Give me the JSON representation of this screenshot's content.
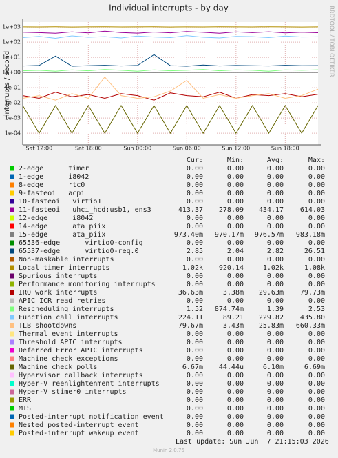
{
  "chart_data": {
    "type": "line",
    "title": "Individual interrupts - by day",
    "y_label": "interrupts / second",
    "side_label": "RRDTOOL / TOBI OETIKER",
    "log_scale": true,
    "grid": true,
    "categories": [
      null,
      "Sat 12:00",
      null,
      null,
      "Sat 18:00",
      null,
      null,
      "Sun 00:00",
      null,
      null,
      "Sun 06:00",
      null,
      null,
      "Sun 12:00",
      null,
      null,
      "Sun 18:00",
      null,
      null
    ],
    "ylim": [
      1.7e-05,
      2100
    ],
    "yticks": [
      {
        "value": 1000,
        "label": "1e+03"
      },
      {
        "value": 100,
        "label": "1e+02"
      },
      {
        "value": 10,
        "label": "1e+01"
      },
      {
        "value": 1,
        "label": "1e+00"
      },
      {
        "value": 0.1,
        "label": "1e-01"
      },
      {
        "value": 0.01,
        "label": "1e-02"
      },
      {
        "value": 0.001,
        "label": "1e-03"
      },
      {
        "value": 0.0001,
        "label": "1e-04"
      }
    ],
    "stat_headers": [
      "Cur:",
      "Min:",
      "Avg:",
      "Max:"
    ],
    "series": [
      {
        "name": "2-edge      timer",
        "color": "#00cc00",
        "stats": [
          "0.00",
          "0.00",
          "0.00",
          "0.00"
        ]
      },
      {
        "name": "1-edge      i8042",
        "color": "#0066b3",
        "stats": [
          "0.00",
          "0.00",
          "0.00",
          "0.00"
        ]
      },
      {
        "name": "8-edge      rtc0",
        "color": "#ff8000",
        "stats": [
          "0.00",
          "0.00",
          "0.00",
          "0.00"
        ]
      },
      {
        "name": "9-fasteoi   acpi",
        "color": "#ffcc00",
        "stats": [
          "0.00",
          "0.00",
          "0.00",
          "0.00"
        ]
      },
      {
        "name": "10-fasteoi   virtio1",
        "color": "#330099",
        "stats": [
          "0.00",
          "0.00",
          "0.00",
          "0.00"
        ]
      },
      {
        "name": "11-fasteoi   uhci_hcd:usb1, ens3",
        "color": "#990099",
        "stats": [
          "413.37",
          "278.09",
          "434.17",
          "614.03"
        ],
        "values": [
          450,
          420,
          380,
          470,
          400,
          520,
          430,
          390,
          460,
          410,
          500,
          440,
          380,
          470,
          420,
          480,
          400,
          450,
          413
        ]
      },
      {
        "name": "12-edge      i8042",
        "color": "#ccff00",
        "stats": [
          "0.00",
          "0.00",
          "0.00",
          "0.00"
        ]
      },
      {
        "name": "14-edge      ata_piix",
        "color": "#ff0000",
        "stats": [
          "0.00",
          "0.00",
          "0.00",
          "0.00"
        ]
      },
      {
        "name": "15-edge      ata_piix",
        "color": "#808080",
        "stats": [
          "973.40m",
          "970.17m",
          "976.57m",
          "983.18m"
        ],
        "values": [
          0.975,
          0.978,
          0.972,
          0.976,
          0.98,
          0.974,
          0.977,
          0.975,
          0.971,
          0.979,
          0.976,
          0.974,
          0.978,
          0.975,
          0.977,
          0.973,
          0.976,
          0.978,
          0.973
        ]
      },
      {
        "name": "65536-edge      virtio0-config",
        "color": "#008f00",
        "stats": [
          "0.00",
          "0.00",
          "0.00",
          "0.00"
        ]
      },
      {
        "name": "65537-edge      virtio0-req.0",
        "color": "#00487d",
        "stats": [
          "2.85",
          "2.04",
          "2.82",
          "26.51"
        ],
        "values": [
          2.7,
          2.9,
          12,
          2.6,
          2.8,
          3,
          2.7,
          2.9,
          15,
          2.8,
          2.6,
          3.1,
          2.7,
          2.9,
          2.8,
          2.7,
          3,
          2.8,
          2.85
        ]
      },
      {
        "name": "Non-maskable interrupts",
        "color": "#b35a00",
        "stats": [
          "0.00",
          "0.00",
          "0.00",
          "0.00"
        ]
      },
      {
        "name": "Local timer interrupts",
        "color": "#b38f00",
        "stats": [
          "1.02k",
          "920.14",
          "1.02k",
          "1.08k"
        ],
        "values": [
          1020,
          1010,
          1030,
          1000,
          1020,
          1040,
          1010,
          1020,
          1030,
          1000,
          1020,
          1010,
          1030,
          1020,
          1010,
          1040,
          1020,
          1000,
          1020
        ]
      },
      {
        "name": "Spurious interrupts",
        "color": "#6b006b",
        "stats": [
          "0.00",
          "0.00",
          "0.00",
          "0.00"
        ]
      },
      {
        "name": "Performance monitoring interrupts",
        "color": "#8fb300",
        "stats": [
          "0.00",
          "0.00",
          "0.00",
          "0.00"
        ]
      },
      {
        "name": "IRQ work interrupts",
        "color": "#b30000",
        "stats": [
          "36.63m",
          "3.38m",
          "29.63m",
          "79.73m"
        ],
        "values": [
          0.03,
          0.02,
          0.05,
          0.025,
          0.035,
          0.02,
          0.04,
          0.03,
          0.015,
          0.045,
          0.03,
          0.025,
          0.05,
          0.02,
          0.035,
          0.03,
          0.04,
          0.025,
          0.037
        ]
      },
      {
        "name": "APIC ICR read retries",
        "color": "#bebebe",
        "stats": [
          "0.00",
          "0.00",
          "0.00",
          "0.00"
        ]
      },
      {
        "name": "Rescheduling interrupts",
        "color": "#80ff80",
        "stats": [
          "1.52",
          "874.74m",
          "1.39",
          "2.53"
        ],
        "values": [
          1.3,
          1.4,
          1.2,
          1.5,
          1.3,
          1.6,
          1.4,
          1.2,
          1.5,
          1.3,
          1.4,
          1.6,
          1.3,
          1.5,
          1.4,
          1.2,
          1.5,
          1.4,
          1.52
        ]
      },
      {
        "name": "Function call interrupts",
        "color": "#80c9ff",
        "stats": [
          "224.11",
          "89.21",
          "229.82",
          "435.80"
        ],
        "values": [
          200,
          240,
          180,
          260,
          210,
          230,
          190,
          250,
          220,
          200,
          270,
          210,
          190,
          240,
          230,
          200,
          250,
          220,
          224
        ]
      },
      {
        "name": "TLB shootdowns",
        "color": "#ffc080",
        "stats": [
          "79.67m",
          "3.43m",
          "25.83m",
          "660.33m"
        ],
        "values": [
          0.02,
          0.03,
          0.015,
          0.04,
          0.02,
          0.5,
          0.03,
          0.02,
          0.025,
          0.06,
          0.3,
          0.02,
          0.035,
          0.02,
          0.03,
          0.04,
          0.02,
          0.03,
          0.08
        ]
      },
      {
        "name": "Thermal event interrupts",
        "color": "#ffe680",
        "stats": [
          "0.00",
          "0.00",
          "0.00",
          "0.00"
        ]
      },
      {
        "name": "Threshold APIC interrupts",
        "color": "#aa80ff",
        "stats": [
          "0.00",
          "0.00",
          "0.00",
          "0.00"
        ]
      },
      {
        "name": "Deferred Error APIC interrupts",
        "color": "#ee00cc",
        "stats": [
          "0.00",
          "0.00",
          "0.00",
          "0.00"
        ]
      },
      {
        "name": "Machine check exceptions",
        "color": "#ff8080",
        "stats": [
          "0.00",
          "0.00",
          "0.00",
          "0.00"
        ]
      },
      {
        "name": "Machine check polls",
        "color": "#666600",
        "stats": [
          "6.67m",
          "44.44u",
          "6.10m",
          "6.69m"
        ],
        "values": [
          0.0066,
          0.0001,
          0.0066,
          0.0001,
          0.0066,
          0.0001,
          0.0066,
          0.0001,
          0.0066,
          0.0001,
          0.0066,
          0.0001,
          0.0066,
          0.0001,
          0.0066,
          0.0001,
          0.0066,
          0.0001,
          0.0066
        ]
      },
      {
        "name": "Hypervisor callback interrupts",
        "color": "#ffbfff",
        "stats": [
          "0.00",
          "0.00",
          "0.00",
          "0.00"
        ]
      },
      {
        "name": "Hyper-V reenlightenment interrupts",
        "color": "#00ffcc",
        "stats": [
          "0.00",
          "0.00",
          "0.00",
          "0.00"
        ]
      },
      {
        "name": "Hyper-V stimer0 interrupts",
        "color": "#cc6699",
        "stats": [
          "0.00",
          "0.00",
          "0.00",
          "0.00"
        ]
      },
      {
        "name": "ERR",
        "color": "#999900",
        "stats": [
          "0.00",
          "0.00",
          "0.00",
          "0.00"
        ]
      },
      {
        "name": "MIS",
        "color": "#00cc00",
        "stats": [
          "0.00",
          "0.00",
          "0.00",
          "0.00"
        ]
      },
      {
        "name": "Posted-interrupt notification event",
        "color": "#0066b3",
        "stats": [
          "0.00",
          "0.00",
          "0.00",
          "0.00"
        ]
      },
      {
        "name": "Nested posted-interrupt event",
        "color": "#ff8000",
        "stats": [
          "0.00",
          "0.00",
          "0.00",
          "0.00"
        ]
      },
      {
        "name": "Posted-interrupt wakeup event",
        "color": "#ffcc00",
        "stats": [
          "0.00",
          "0.00",
          "0.00",
          "0.00"
        ]
      }
    ],
    "last_update": "Last update: Sun Jun  7 21:15:03 2026",
    "footer": "Munin 2.0.76"
  }
}
